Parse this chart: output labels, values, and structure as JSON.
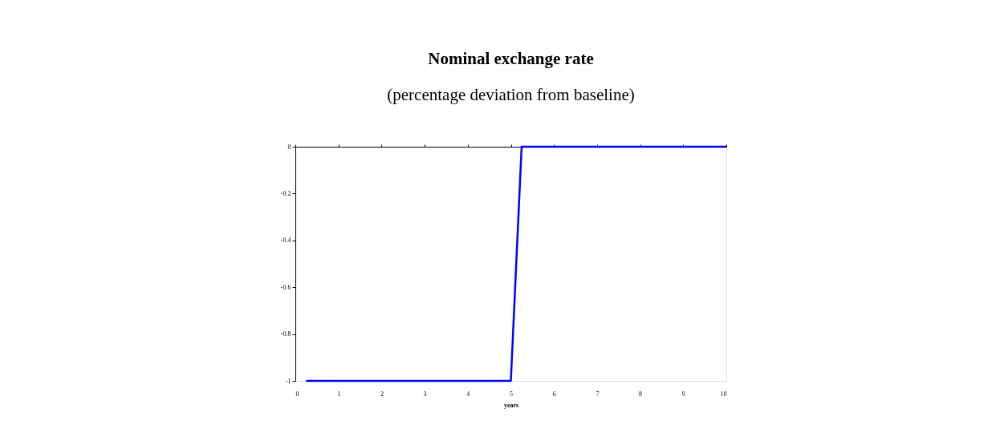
{
  "chart_data": {
    "type": "line",
    "title": "Nominal exchange rate",
    "subtitle": "(percentage deviation from baseline)",
    "xlabel": "years",
    "x": [
      0.25,
      0.5,
      0.75,
      1,
      1.25,
      1.5,
      1.75,
      2,
      2.25,
      2.5,
      2.75,
      3,
      3.25,
      3.5,
      3.75,
      4,
      4.25,
      4.5,
      4.75,
      5,
      5.25,
      5.5,
      5.75,
      6,
      6.25,
      6.5,
      6.75,
      7,
      7.25,
      7.5,
      7.75,
      8,
      8.25,
      8.5,
      8.75,
      9,
      9.25,
      9.5,
      9.75,
      10
    ],
    "series": [
      {
        "color": "#0000ff",
        "values": [
          -1,
          -1,
          -1,
          -1,
          -1,
          -1,
          -1,
          -1,
          -1,
          -1,
          -1,
          -1,
          -1,
          -1,
          -1,
          -1,
          -1,
          -1,
          -1,
          -1,
          0,
          0,
          0,
          0,
          0,
          0,
          0,
          0,
          0,
          0,
          0,
          0,
          0,
          0,
          0,
          0,
          0,
          0,
          0,
          0
        ]
      }
    ],
    "xlim": [
      0,
      10
    ],
    "xticks": [
      0,
      1,
      2,
      3,
      4,
      5,
      6,
      7,
      8,
      9,
      10
    ],
    "ylim": [
      -1,
      0
    ],
    "yticks": [
      -1,
      -0.8,
      -0.6,
      -0.4,
      -0.2,
      0
    ],
    "grid": false,
    "legend": false,
    "marker": "none",
    "line_style": "solid"
  }
}
